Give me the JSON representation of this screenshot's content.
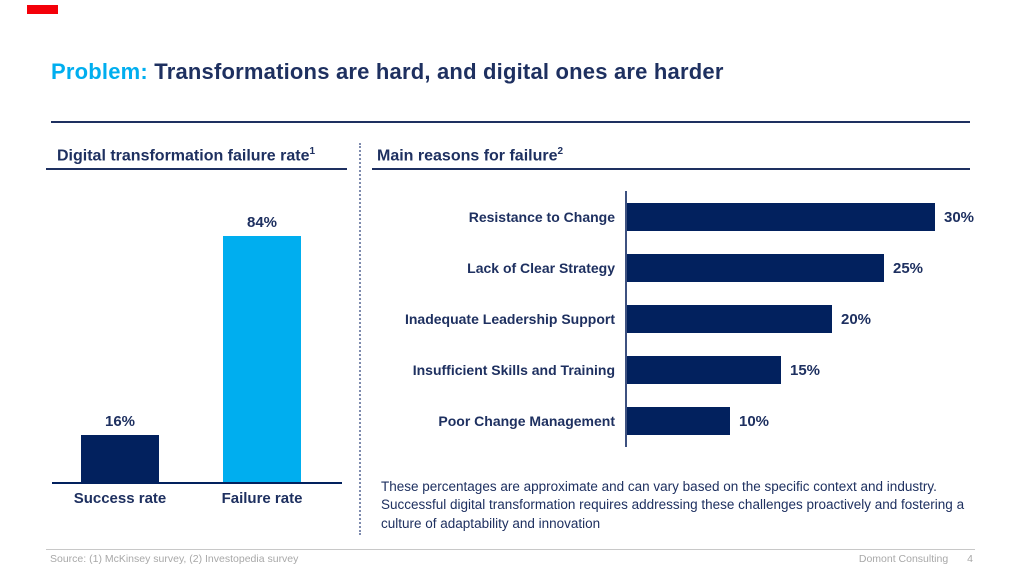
{
  "slide": {
    "title": {
      "highlight": "Problem:",
      "rest": " Transformations are hard, and digital ones are harder"
    },
    "footer": {
      "source": "Source: (1) McKinsey survey, (2) Investopedia survey",
      "company": "Domont Consulting",
      "page": "4"
    }
  },
  "left_panel": {
    "heading": "Digital transformation failure rate",
    "heading_sup": "1"
  },
  "right_panel": {
    "heading": "Main reasons for failure",
    "heading_sup": "2",
    "note": "These percentages are approximate and can vary based on the specific context and industry. Successful digital transformation requires addressing these challenges proactively and fostering a culture of adaptability and innovation"
  },
  "colors": {
    "navy": "#02215E",
    "text_navy": "#1E3060",
    "cyan": "#00AEEF",
    "red": "#F40009",
    "footer_gray": "#A8A8A8"
  },
  "chart_data": [
    {
      "type": "bar",
      "orientation": "vertical",
      "title": "Digital transformation failure rate",
      "categories": [
        "Success rate",
        "Failure rate"
      ],
      "values": [
        16,
        84
      ],
      "value_labels": [
        "16%",
        "84%"
      ],
      "bar_colors": [
        "#02215E",
        "#00AEEF"
      ],
      "ylim": [
        0,
        100
      ],
      "grid": false,
      "legend": false
    },
    {
      "type": "bar",
      "orientation": "horizontal",
      "title": "Main reasons for failure",
      "categories": [
        "Resistance to Change",
        "Lack of Clear Strategy",
        "Inadequate Leadership Support",
        "Insufficient Skills and Training",
        "Poor Change Management"
      ],
      "values": [
        30,
        25,
        20,
        15,
        10
      ],
      "value_labels": [
        "30%",
        "25%",
        "20%",
        "15%",
        "10%"
      ],
      "bar_color": "#02215E",
      "xlim": [
        0,
        30
      ],
      "grid": false,
      "legend": false
    }
  ]
}
